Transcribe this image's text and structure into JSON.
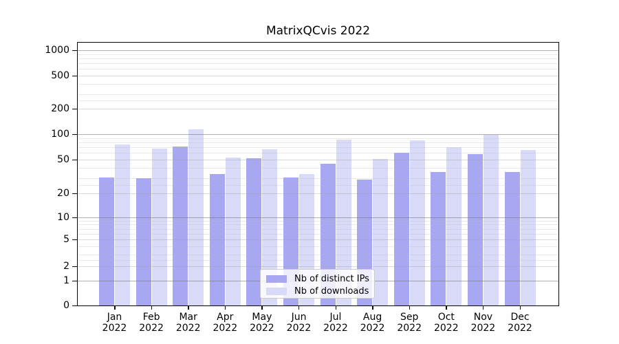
{
  "title": "MatrixQCvis 2022",
  "chart_data": {
    "type": "bar",
    "title": "MatrixQCvis 2022",
    "categories": [
      "Jan 2022",
      "Feb 2022",
      "Mar 2022",
      "Apr 2022",
      "May 2022",
      "Jun 2022",
      "Jul 2022",
      "Aug 2022",
      "Sep 2022",
      "Oct 2022",
      "Nov 2022",
      "Dec 2022"
    ],
    "series": [
      {
        "name": "Nb of distinct IPs",
        "color": "#a8a8f2",
        "values": [
          31,
          30,
          72,
          34,
          52,
          31,
          45,
          29,
          60,
          36,
          58,
          36
        ]
      },
      {
        "name": "Nb of downloads",
        "color": "#d9d9f8",
        "values": [
          75,
          68,
          115,
          53,
          66,
          34,
          86,
          51,
          85,
          70,
          98,
          65
        ]
      }
    ],
    "xlabel": "",
    "ylabel": "",
    "yscale": "symlog",
    "yticks": [
      0,
      1,
      2,
      5,
      10,
      20,
      50,
      100,
      200,
      500,
      1000
    ],
    "ylim": [
      0,
      1200
    ],
    "grid": true,
    "legend_position": "lower center",
    "colors": {
      "grid_major": "#b0b0b0",
      "grid_minor": "#e3e3e3",
      "spine": "#000000"
    }
  }
}
